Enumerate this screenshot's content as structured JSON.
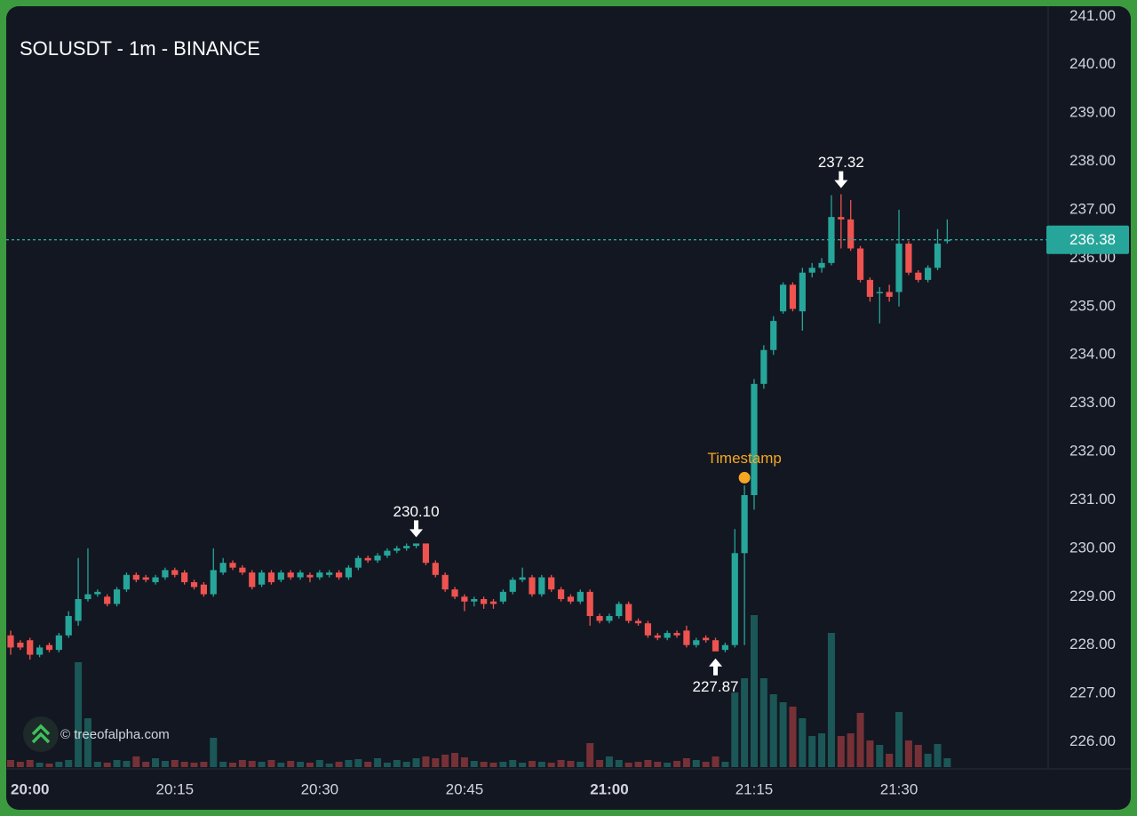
{
  "chart_data": {
    "type": "candlestick",
    "title": "SOLUSDT - 1m - BINANCE",
    "watermark": "© treeofalpha.com",
    "x": [
      "19:58",
      "19:59",
      "20:00",
      "20:01",
      "20:02",
      "20:03",
      "20:04",
      "20:05",
      "20:06",
      "20:07",
      "20:08",
      "20:09",
      "20:10",
      "20:11",
      "20:12",
      "20:13",
      "20:14",
      "20:15",
      "20:16",
      "20:17",
      "20:18",
      "20:19",
      "20:20",
      "20:21",
      "20:22",
      "20:23",
      "20:24",
      "20:25",
      "20:26",
      "20:27",
      "20:28",
      "20:29",
      "20:30",
      "20:31",
      "20:32",
      "20:33",
      "20:34",
      "20:35",
      "20:36",
      "20:37",
      "20:38",
      "20:39",
      "20:40",
      "20:41",
      "20:42",
      "20:43",
      "20:44",
      "20:45",
      "20:46",
      "20:47",
      "20:48",
      "20:49",
      "20:50",
      "20:51",
      "20:52",
      "20:53",
      "20:54",
      "20:55",
      "20:56",
      "20:57",
      "20:58",
      "20:59",
      "21:00",
      "21:01",
      "21:02",
      "21:03",
      "21:04",
      "21:05",
      "21:06",
      "21:07",
      "21:08",
      "21:09",
      "21:10",
      "21:11",
      "21:12",
      "21:13",
      "21:14",
      "21:15",
      "21:16",
      "21:17",
      "21:18",
      "21:19",
      "21:20",
      "21:21",
      "21:22",
      "21:23",
      "21:24",
      "21:25",
      "21:26",
      "21:27",
      "21:28",
      "21:29",
      "21:30",
      "21:31",
      "21:32",
      "21:33",
      "21:34",
      "21:35"
    ],
    "open": [
      228.2,
      228.05,
      228.1,
      227.8,
      228.0,
      227.9,
      228.2,
      228.5,
      228.95,
      229.05,
      229.0,
      228.85,
      229.15,
      229.45,
      229.4,
      229.3,
      229.4,
      229.55,
      229.5,
      229.3,
      229.25,
      229.05,
      229.5,
      229.7,
      229.6,
      229.5,
      229.25,
      229.5,
      229.35,
      229.5,
      229.4,
      229.45,
      229.4,
      229.45,
      229.5,
      229.4,
      229.6,
      229.8,
      229.75,
      229.85,
      229.95,
      230.0,
      230.05,
      230.1,
      229.7,
      229.45,
      229.15,
      229.0,
      228.9,
      228.95,
      228.9,
      228.9,
      229.1,
      229.35,
      229.4,
      229.05,
      229.4,
      229.15,
      229.0,
      228.9,
      229.1,
      228.6,
      228.5,
      228.6,
      228.85,
      228.5,
      228.45,
      228.2,
      228.15,
      228.25,
      228.3,
      228.0,
      228.15,
      228.1,
      227.9,
      228.0,
      229.9,
      231.1,
      233.4,
      234.1,
      234.9,
      235.45,
      234.9,
      235.7,
      235.8,
      235.9,
      236.85,
      236.8,
      236.2,
      235.55,
      235.3,
      235.3,
      235.3,
      236.3,
      235.7,
      235.55,
      235.8,
      236.35
    ],
    "high": [
      228.3,
      228.1,
      228.15,
      228.0,
      228.05,
      228.25,
      228.7,
      229.8,
      230.0,
      229.15,
      229.05,
      229.2,
      229.5,
      229.5,
      229.45,
      229.45,
      229.6,
      229.6,
      229.55,
      229.35,
      229.3,
      230.0,
      229.8,
      229.75,
      229.65,
      229.55,
      229.55,
      229.55,
      229.55,
      229.55,
      229.55,
      229.5,
      229.55,
      229.55,
      229.55,
      229.65,
      229.85,
      229.85,
      229.9,
      230.0,
      230.05,
      230.1,
      230.1,
      230.1,
      229.75,
      229.5,
      229.2,
      229.05,
      229.0,
      229.0,
      228.95,
      229.15,
      229.4,
      229.6,
      229.45,
      229.45,
      229.45,
      229.2,
      229.05,
      229.15,
      229.15,
      228.65,
      228.65,
      228.9,
      228.9,
      228.55,
      228.5,
      228.25,
      228.3,
      228.3,
      228.4,
      228.15,
      228.2,
      228.15,
      228.05,
      230.4,
      231.3,
      233.5,
      234.2,
      234.8,
      235.5,
      235.5,
      235.8,
      235.9,
      236.0,
      237.3,
      237.32,
      237.2,
      236.25,
      235.6,
      235.4,
      235.45,
      237.0,
      236.35,
      235.75,
      235.85,
      236.6,
      236.8
    ],
    "low": [
      227.8,
      227.9,
      227.7,
      227.75,
      227.85,
      227.85,
      228.15,
      228.4,
      228.9,
      229.0,
      228.8,
      228.8,
      229.1,
      229.3,
      229.3,
      229.25,
      229.35,
      229.4,
      229.25,
      229.15,
      229.0,
      229.0,
      229.45,
      229.55,
      229.45,
      229.15,
      229.2,
      229.25,
      229.3,
      229.35,
      229.35,
      229.3,
      229.35,
      229.4,
      229.35,
      229.35,
      229.55,
      229.7,
      229.7,
      229.8,
      229.9,
      229.95,
      230.0,
      229.65,
      229.4,
      229.1,
      228.95,
      228.7,
      228.8,
      228.75,
      228.75,
      228.85,
      229.05,
      229.3,
      229.0,
      229.0,
      229.1,
      228.9,
      228.85,
      228.85,
      228.4,
      228.45,
      228.45,
      228.55,
      228.45,
      228.4,
      228.15,
      228.1,
      228.1,
      228.15,
      227.95,
      227.95,
      228.05,
      227.87,
      227.85,
      227.95,
      228.0,
      230.8,
      233.3,
      234.0,
      234.85,
      234.9,
      234.5,
      235.6,
      235.7,
      235.85,
      236.2,
      236.15,
      235.5,
      235.1,
      234.65,
      235.1,
      235.0,
      235.65,
      235.5,
      235.5,
      235.75,
      236.3
    ],
    "close": [
      227.95,
      227.95,
      227.8,
      227.95,
      227.9,
      228.2,
      228.6,
      228.95,
      229.05,
      229.1,
      228.85,
      229.15,
      229.45,
      229.35,
      229.35,
      229.4,
      229.55,
      229.45,
      229.3,
      229.2,
      229.05,
      229.55,
      229.7,
      229.6,
      229.5,
      229.2,
      229.5,
      229.3,
      229.5,
      229.4,
      229.5,
      229.4,
      229.5,
      229.5,
      229.4,
      229.6,
      229.8,
      229.75,
      229.85,
      229.95,
      230.0,
      230.05,
      230.1,
      229.7,
      229.45,
      229.15,
      229.0,
      228.9,
      228.95,
      228.85,
      228.85,
      229.1,
      229.35,
      229.4,
      229.05,
      229.4,
      229.15,
      228.95,
      228.9,
      229.1,
      228.6,
      228.5,
      228.6,
      228.85,
      228.5,
      228.45,
      228.2,
      228.15,
      228.25,
      228.2,
      228.0,
      228.1,
      228.1,
      227.87,
      228.0,
      229.9,
      231.1,
      233.4,
      234.1,
      234.7,
      235.45,
      234.95,
      235.7,
      235.8,
      235.9,
      236.85,
      236.8,
      236.2,
      235.55,
      235.2,
      235.3,
      235.2,
      236.3,
      235.7,
      235.55,
      235.8,
      236.3,
      236.38
    ],
    "volume": [
      8,
      6,
      8,
      5,
      4,
      6,
      8,
      118,
      55,
      6,
      5,
      8,
      7,
      12,
      6,
      10,
      7,
      8,
      6,
      5,
      6,
      33,
      6,
      5,
      8,
      7,
      6,
      8,
      5,
      7,
      6,
      5,
      8,
      4,
      6,
      8,
      9,
      6,
      10,
      5,
      8,
      6,
      10,
      12,
      10,
      14,
      16,
      11,
      7,
      6,
      5,
      6,
      8,
      5,
      7,
      6,
      5,
      8,
      7,
      6,
      27,
      8,
      12,
      8,
      5,
      6,
      8,
      6,
      5,
      7,
      10,
      8,
      6,
      12,
      6,
      84,
      100,
      171,
      100,
      82,
      73,
      68,
      55,
      35,
      38,
      151,
      35,
      38,
      61,
      30,
      25,
      15,
      62,
      30,
      25,
      15,
      26,
      10
    ],
    "ylim": [
      225.55,
      241.3
    ],
    "yticks": [
      {
        "value": 226,
        "label": "226.00"
      },
      {
        "value": 227,
        "label": "227.00"
      },
      {
        "value": 228,
        "label": "228.00"
      },
      {
        "value": 229,
        "label": "229.00"
      },
      {
        "value": 230,
        "label": "230.00"
      },
      {
        "value": 231,
        "label": "231.00"
      },
      {
        "value": 232,
        "label": "232.00"
      },
      {
        "value": 233,
        "label": "233.00"
      },
      {
        "value": 234,
        "label": "234.00"
      },
      {
        "value": 235,
        "label": "235.00"
      },
      {
        "value": 236,
        "label": "236.00"
      },
      {
        "value": 237,
        "label": "237.00"
      },
      {
        "value": 238,
        "label": "238.00"
      },
      {
        "value": 239,
        "label": "239.00"
      },
      {
        "value": 240,
        "label": "240.00"
      },
      {
        "value": 241,
        "label": "241.00"
      }
    ],
    "xticks": [
      "20:00",
      "20:15",
      "20:30",
      "20:45",
      "21:00",
      "21:15",
      "21:30"
    ],
    "last_price": {
      "value": 236.38,
      "label": "236.38"
    },
    "annotations": [
      {
        "x": "20:40",
        "value": 230.1,
        "label": "230.10",
        "arrow": "down"
      },
      {
        "x": "21:11",
        "value": 227.87,
        "label": "227.87",
        "arrow": "up"
      },
      {
        "x": "21:24",
        "value": 237.32,
        "label": "237.32",
        "arrow": "down"
      }
    ],
    "marker": {
      "x": "21:14",
      "value": 231.46,
      "label": "Timestamp",
      "color": "#f5a623"
    },
    "up_color": "#26a69a",
    "down_color": "#ef5350",
    "grid": true
  }
}
